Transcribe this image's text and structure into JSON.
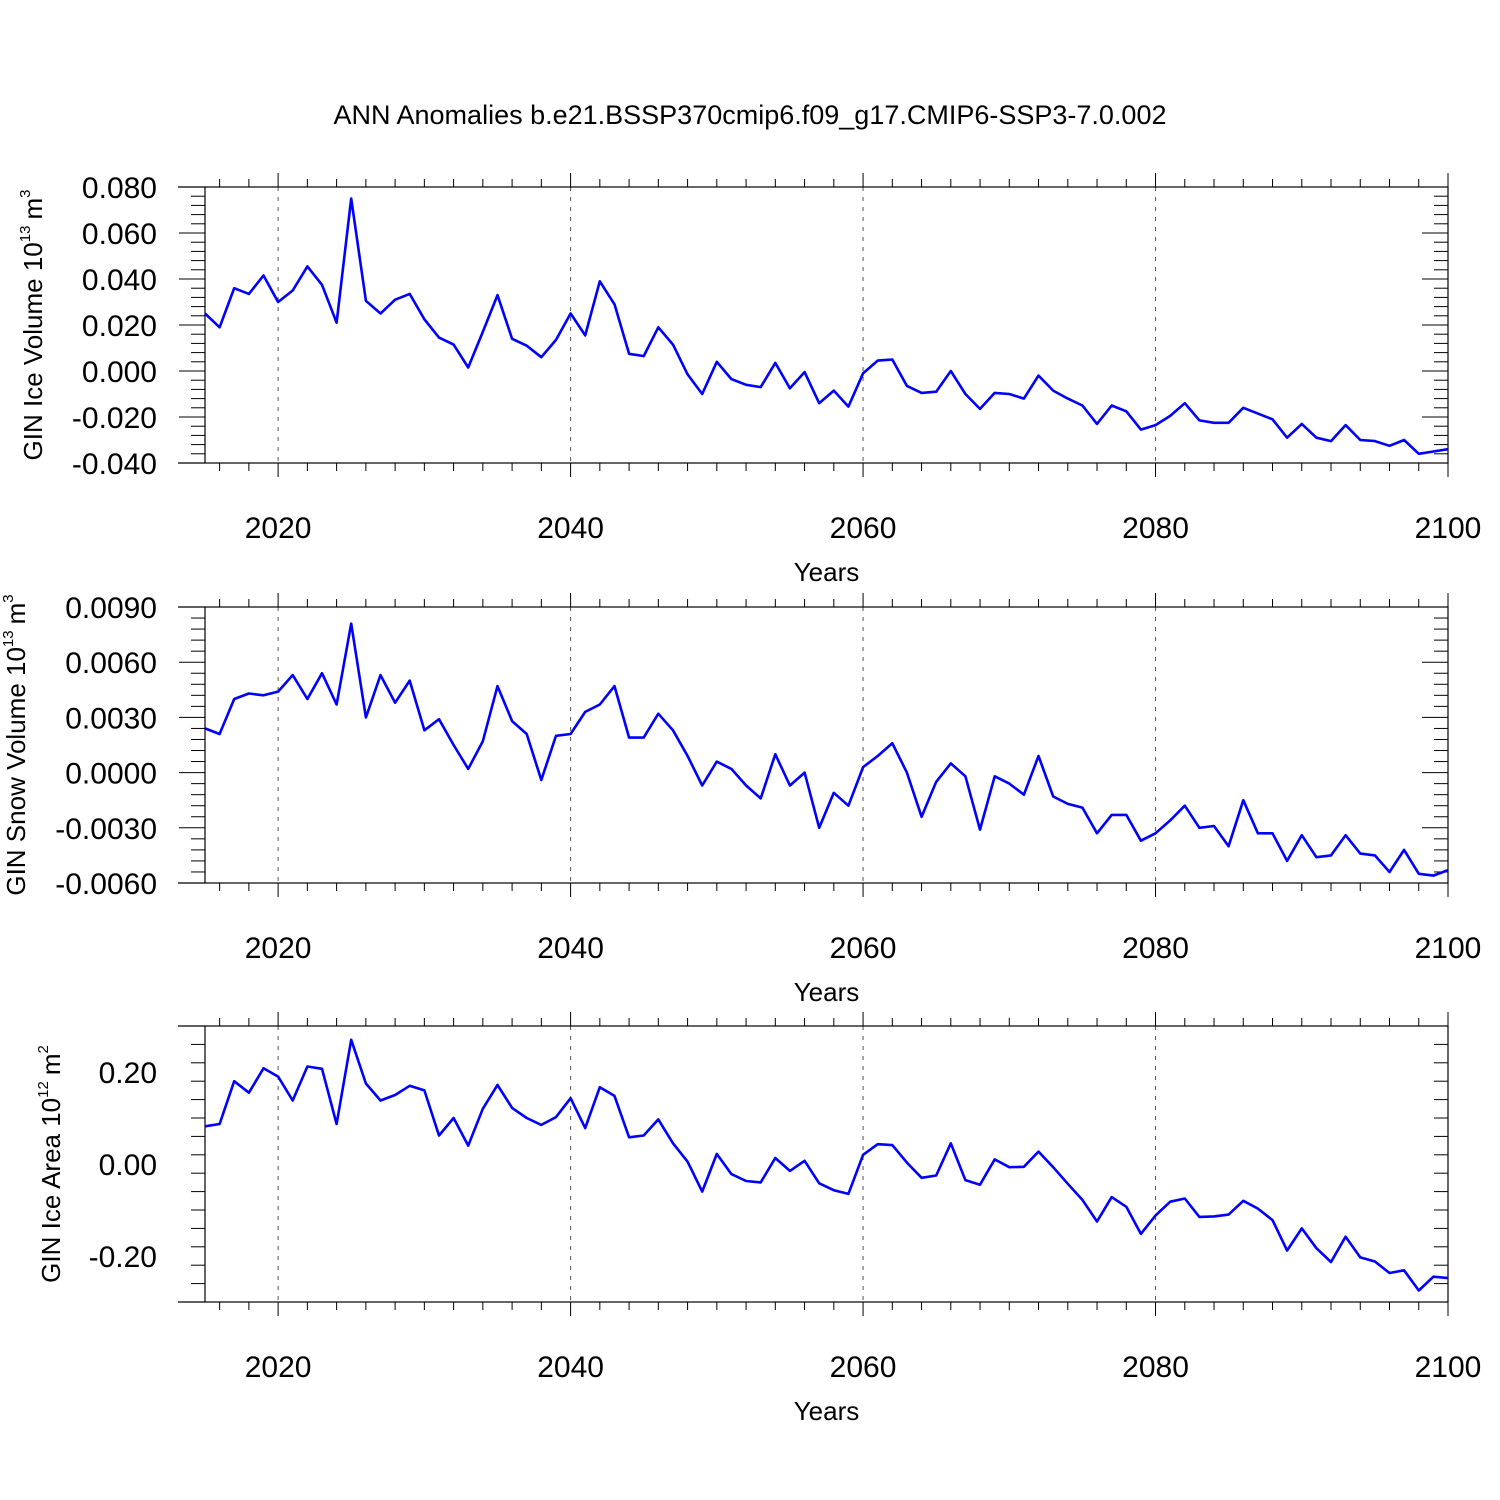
{
  "title": "ANN Anomalies b.e21.BSSP370cmip6.f09_g17.CMIP6-SSP3-7.0.002",
  "colors": {
    "line": "#0000ff",
    "axis": "#000000",
    "grid": "#555555"
  },
  "chart_data": [
    {
      "type": "line",
      "ylabel_main": "GIN Ice Volume 10",
      "ylabel_exp": "13",
      "ylabel_unit": "m",
      "ylabel_unit_exp": "3",
      "xlabel": "Years",
      "xlim": [
        2015,
        2100
      ],
      "ylim": [
        -0.04,
        0.08
      ],
      "xticks": [
        2020,
        2040,
        2060,
        2080,
        2100
      ],
      "xtick_labels": [
        "2020",
        "2040",
        "2060",
        "2080",
        "2100"
      ],
      "yticks": [
        -0.04,
        -0.02,
        0,
        0.02,
        0.04,
        0.06,
        0.08
      ],
      "ytick_labels": [
        "-0.040",
        "-0.020",
        "0.000",
        "0.020",
        "0.040",
        "0.060",
        "0.080"
      ],
      "grid_x": "dashed vertical at major x ticks",
      "series": [
        {
          "x_start": 2015,
          "values": [
            0.025,
            0.019,
            0.036,
            0.0335,
            0.0415,
            0.03,
            0.035,
            0.0455,
            0.0375,
            0.021,
            0.075,
            0.0305,
            0.025,
            0.031,
            0.0335,
            0.0225,
            0.0145,
            0.0115,
            0.0015,
            0.017,
            0.033,
            0.014,
            0.011,
            0.006,
            0.0135,
            0.025,
            0.0155,
            0.039,
            0.029,
            0.0075,
            0.0065,
            0.019,
            0.0115,
            -0.0015,
            -0.01,
            0.004,
            -0.0035,
            -0.006,
            -0.007,
            0.0035,
            -0.0075,
            -0.0005,
            -0.014,
            -0.0085,
            -0.0155,
            -0.001,
            0.0045,
            0.005,
            -0.0065,
            -0.0095,
            -0.009,
            0.0,
            -0.01,
            -0.0165,
            -0.0095,
            -0.01,
            -0.012,
            -0.002,
            -0.0085,
            -0.012,
            -0.015,
            -0.023,
            -0.015,
            -0.0175,
            -0.0255,
            -0.0235,
            -0.0195,
            -0.014,
            -0.0215,
            -0.0225,
            -0.0225,
            -0.016,
            -0.0185,
            -0.021,
            -0.029,
            -0.023,
            -0.029,
            -0.0305,
            -0.0235,
            -0.03,
            -0.0305,
            -0.0325,
            -0.03,
            -0.036,
            -0.035,
            -0.034
          ]
        }
      ]
    },
    {
      "type": "line",
      "ylabel_main": "GIN Snow Volume 10",
      "ylabel_exp": "13",
      "ylabel_unit": "m",
      "ylabel_unit_exp": "3",
      "xlabel": "Years",
      "xlim": [
        2015,
        2100
      ],
      "ylim": [
        -0.006,
        0.009
      ],
      "xticks": [
        2020,
        2040,
        2060,
        2080,
        2100
      ],
      "xtick_labels": [
        "2020",
        "2040",
        "2060",
        "2080",
        "2100"
      ],
      "yticks": [
        -0.006,
        -0.003,
        0,
        0.003,
        0.006,
        0.009
      ],
      "ytick_labels": [
        "-0.0060",
        "-0.0030",
        "0.0000",
        "0.0030",
        "0.0060",
        "0.0090"
      ],
      "grid_x": "dashed vertical at major x ticks",
      "series": [
        {
          "x_start": 2015,
          "values": [
            0.0024,
            0.0021,
            0.004,
            0.0043,
            0.0042,
            0.0044,
            0.0053,
            0.004,
            0.0054,
            0.0037,
            0.0081,
            0.003,
            0.0053,
            0.0038,
            0.005,
            0.0023,
            0.0029,
            0.0015,
            0.0002,
            0.0017,
            0.0047,
            0.0028,
            0.0021,
            -0.0004,
            0.002,
            0.0021,
            0.0033,
            0.0037,
            0.0047,
            0.0019,
            0.0019,
            0.0032,
            0.0023,
            0.0009,
            -0.0007,
            0.0006,
            0.0002,
            -0.0007,
            -0.0014,
            0.001,
            -0.0007,
            0.0,
            -0.003,
            -0.0011,
            -0.0018,
            0.0003,
            0.0009,
            0.0016,
            0.0,
            -0.0024,
            -0.0005,
            0.0005,
            -0.0002,
            -0.0031,
            -0.0002,
            -0.0006,
            -0.0012,
            0.0009,
            -0.0013,
            -0.0017,
            -0.0019,
            -0.0033,
            -0.0023,
            -0.0023,
            -0.0037,
            -0.0033,
            -0.0026,
            -0.0018,
            -0.003,
            -0.0029,
            -0.004,
            -0.0015,
            -0.0033,
            -0.0033,
            -0.0048,
            -0.0034,
            -0.0046,
            -0.0045,
            -0.0034,
            -0.0044,
            -0.0045,
            -0.0054,
            -0.0042,
            -0.0055,
            -0.0056,
            -0.0053
          ]
        }
      ]
    },
    {
      "type": "line",
      "ylabel_main": "GIN Ice Area 10",
      "ylabel_exp": "12",
      "ylabel_unit": "m",
      "ylabel_unit_exp": "2",
      "xlabel": "Years",
      "xlim": [
        2015,
        2100
      ],
      "ylim": [
        -0.3,
        0.3
      ],
      "xticks": [
        2020,
        2040,
        2060,
        2080,
        2100
      ],
      "xtick_labels": [
        "2020",
        "2040",
        "2060",
        "2080",
        "2100"
      ],
      "yticks": [
        -0.2,
        0,
        0.2
      ],
      "ytick_labels": [
        "-0.20",
        "0.00",
        "0.20"
      ],
      "grid_x": "dashed vertical at major x ticks",
      "series": [
        {
          "x_start": 2015,
          "values": [
            0.082,
            0.087,
            0.18,
            0.155,
            0.208,
            0.19,
            0.138,
            0.212,
            0.207,
            0.087,
            0.27,
            0.175,
            0.138,
            0.15,
            0.17,
            0.16,
            0.062,
            0.1,
            0.04,
            0.12,
            0.172,
            0.122,
            0.1,
            0.085,
            0.102,
            0.143,
            0.078,
            0.167,
            0.148,
            0.058,
            0.062,
            0.097,
            0.045,
            0.005,
            -0.06,
            0.022,
            -0.022,
            -0.037,
            -0.04,
            0.013,
            -0.015,
            0.007,
            -0.042,
            -0.057,
            -0.065,
            0.02,
            0.043,
            0.041,
            0.003,
            -0.03,
            -0.025,
            0.045,
            -0.035,
            -0.045,
            0.01,
            -0.007,
            -0.006,
            0.027,
            -0.007,
            -0.043,
            -0.078,
            -0.125,
            -0.072,
            -0.093,
            -0.152,
            -0.112,
            -0.082,
            -0.075,
            -0.115,
            -0.114,
            -0.11,
            -0.08,
            -0.097,
            -0.122,
            -0.188,
            -0.14,
            -0.183,
            -0.213,
            -0.158,
            -0.203,
            -0.212,
            -0.237,
            -0.231,
            -0.275,
            -0.245,
            -0.248
          ]
        }
      ]
    }
  ]
}
